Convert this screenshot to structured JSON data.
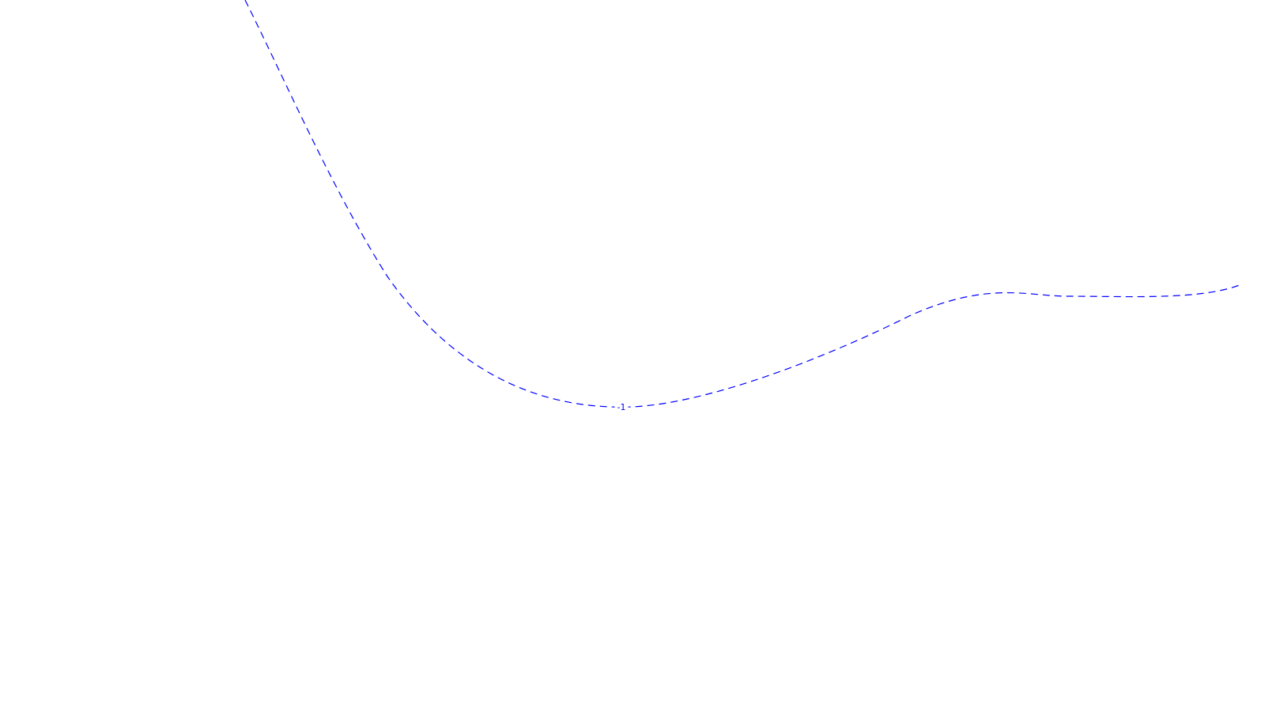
{
  "chart_data": {
    "type": "line",
    "plot": "contour",
    "title": "",
    "xlabel": "",
    "ylabel": "",
    "grid": false,
    "series": [
      {
        "label": "-1",
        "color": "#0000ff",
        "line_style": "dashed"
      }
    ]
  }
}
